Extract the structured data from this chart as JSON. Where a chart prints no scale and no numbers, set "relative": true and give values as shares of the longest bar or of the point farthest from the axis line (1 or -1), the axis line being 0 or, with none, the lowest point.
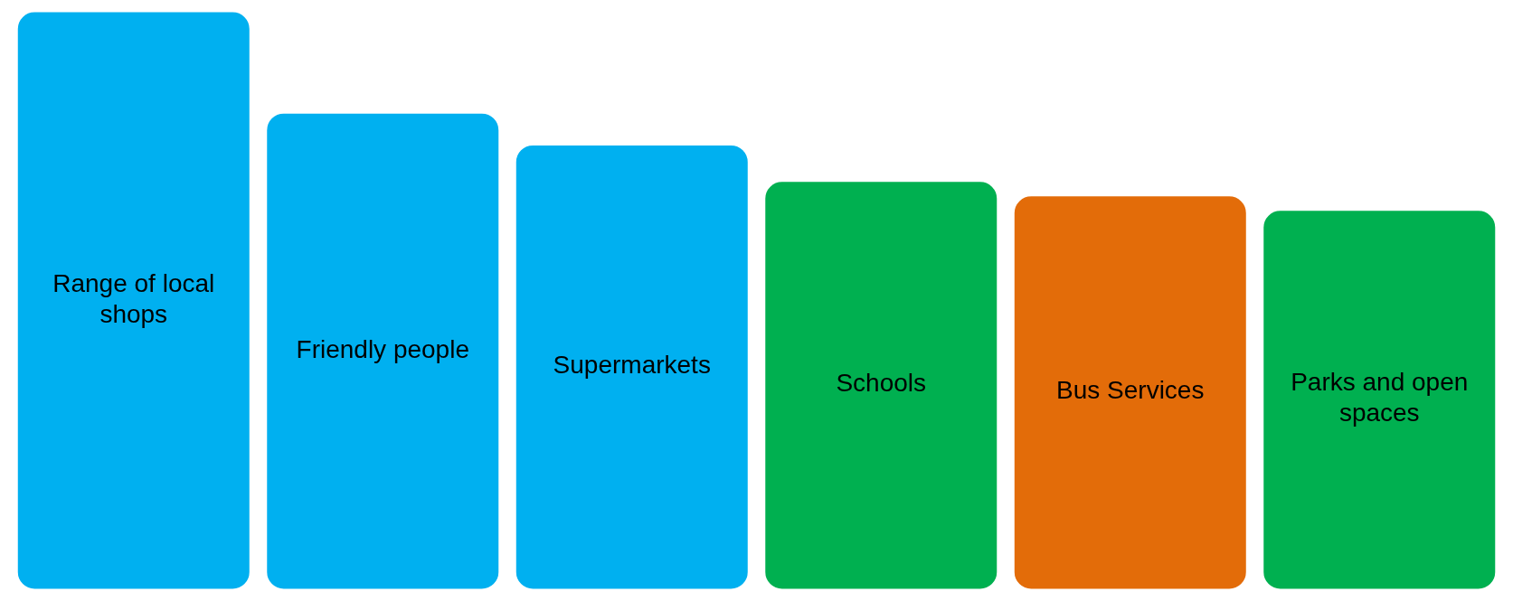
{
  "chart_data": {
    "type": "bar",
    "relative": true,
    "categories": [
      "Range of local shops",
      "Friendly people",
      "Supermarkets",
      "Schools",
      "Bus Services",
      "Parks and open spaces"
    ],
    "values": [
      1,
      0.825,
      0.77,
      0.707,
      0.682,
      0.657
    ],
    "colors": [
      "#00b0f0",
      "#00b0f0",
      "#00b0f0",
      "#00b050",
      "#e36c09",
      "#00b050"
    ]
  }
}
